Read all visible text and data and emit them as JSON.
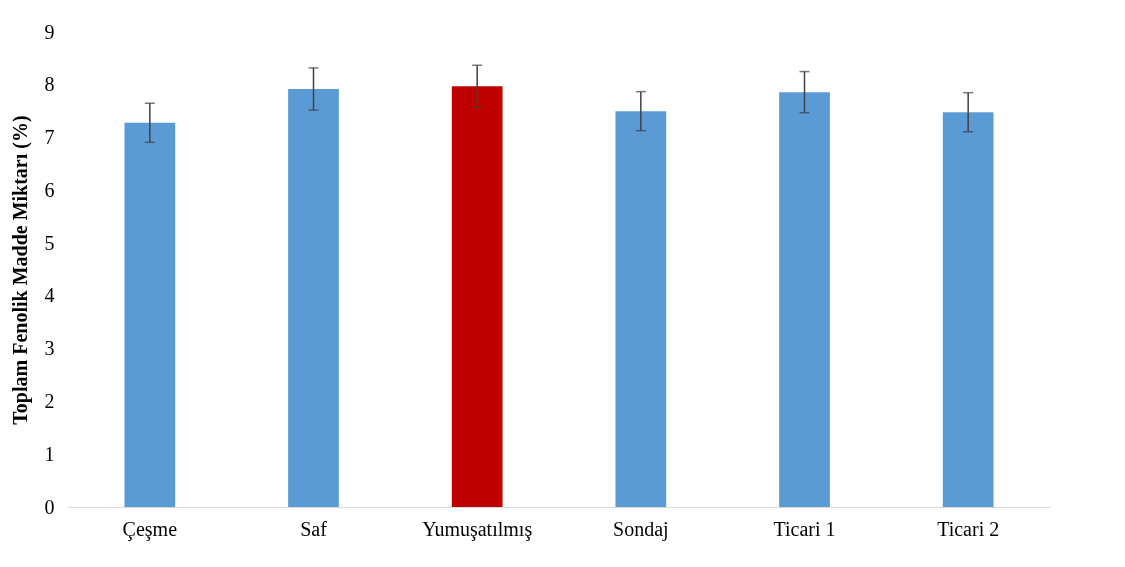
{
  "chart_data": {
    "type": "bar",
    "ylabel": "Toplam Fenolik Madde Miktarı (%)",
    "categories": [
      "Çeşme",
      "Saf",
      "Yumuşatılmış",
      "Sondaj",
      "Ticari 1",
      "Ticari 2"
    ],
    "values": [
      7.28,
      7.92,
      7.97,
      7.5,
      7.86,
      7.48
    ],
    "colors": [
      "#5b9bd5",
      "#5b9bd5",
      "#c00000",
      "#5b9bd5",
      "#5b9bd5",
      "#5b9bd5"
    ],
    "errors": [
      0.37,
      0.4,
      0.4,
      0.37,
      0.39,
      0.37
    ],
    "ylim": [
      0,
      9
    ],
    "yticks": [
      0,
      1,
      2,
      3,
      4,
      5,
      6,
      7,
      8,
      9
    ],
    "grid": false
  }
}
